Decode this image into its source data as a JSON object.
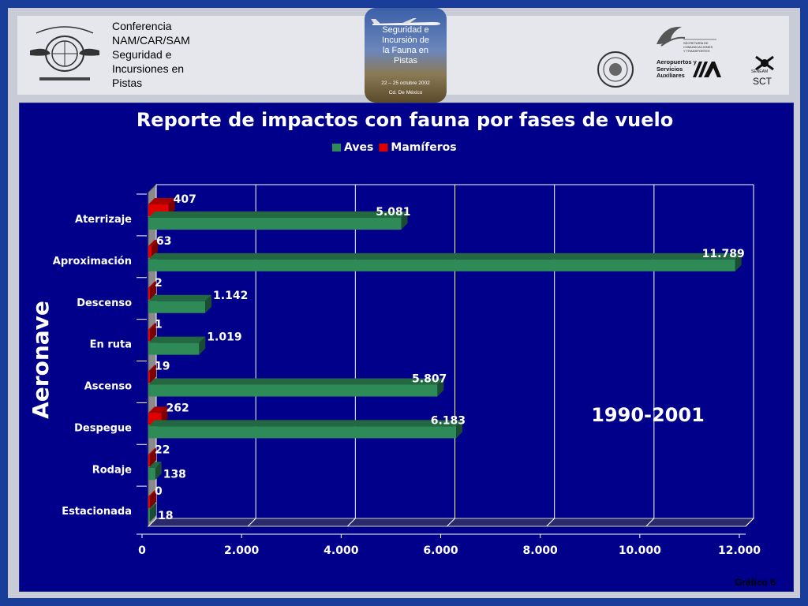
{
  "header": {
    "conference_lines": [
      "Conferencia",
      "NAM/CAR/SAM",
      "Seguridad e",
      "Incursiones en",
      "Pistas"
    ],
    "event_badge": {
      "title_lines": [
        "Seguridad e",
        "Incursión de",
        "la Fauna en",
        "Pistas"
      ],
      "dates": "22 – 25 octubre 2002",
      "city": "Cd. De México"
    },
    "sct_lines": [
      "SECRETARÍA DE",
      "COMUNICACIONES",
      "Y TRANSPORTES"
    ],
    "asa_lines": [
      "Aeropuertos y",
      "Servicios",
      "Auxiliares"
    ],
    "senea_small": "SENEAM",
    "senea_text": "SCT"
  },
  "chart_data": {
    "type": "bar",
    "orientation": "horizontal",
    "title": "Reporte de impactos con fauna por fases de vuelo",
    "ylabel": "Aeronave",
    "annotation": "1990-2001",
    "categories": [
      "Aterrizaje",
      "Aproximación",
      "Descenso",
      "En ruta",
      "Ascenso",
      "Despegue",
      "Rodaje",
      "Estacionada"
    ],
    "series": [
      {
        "name": "Aves",
        "color": "#2e8b57",
        "values": [
          5081,
          11789,
          1142,
          1019,
          5807,
          6183,
          138,
          18
        ],
        "labels": [
          "5.081",
          "11.789",
          "1.142",
          "1.019",
          "5.807",
          "6.183",
          "138",
          "18"
        ]
      },
      {
        "name": "Mamíferos",
        "color": "#e00000",
        "values": [
          407,
          63,
          2,
          1,
          19,
          262,
          22,
          0
        ],
        "labels": [
          "407",
          "63",
          "2",
          "1",
          "19",
          "262",
          "22",
          "0"
        ]
      }
    ],
    "xlim": [
      0,
      12000
    ],
    "xticks": [
      0,
      2000,
      4000,
      6000,
      8000,
      10000,
      12000
    ],
    "xtick_labels": [
      "0",
      "2.000",
      "4.000",
      "6.000",
      "8.000",
      "10.000",
      "12.000"
    ],
    "grid": true,
    "legend": "top-center"
  },
  "footer": {
    "label": "Gráfico 6"
  }
}
